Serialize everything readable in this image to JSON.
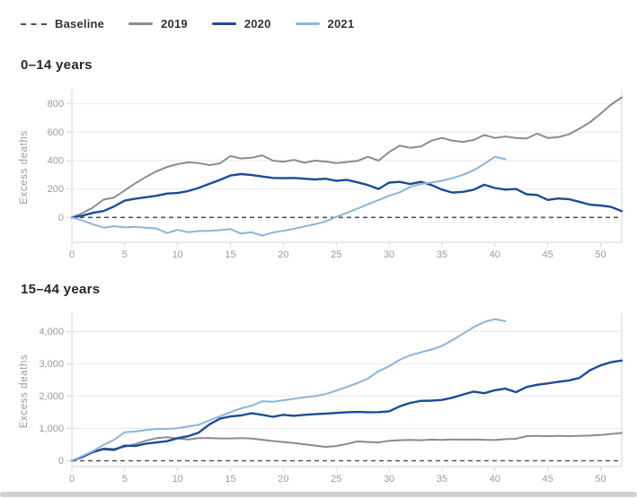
{
  "legend": {
    "items": [
      {
        "label": "Baseline",
        "style": "dashed",
        "color": "#4a4f57"
      },
      {
        "label": "2019",
        "style": "solid",
        "color": "#8c8c8c"
      },
      {
        "label": "2020",
        "style": "solid",
        "color": "#1c4c96"
      },
      {
        "label": "2021",
        "style": "solid",
        "color": "#8ab5dc"
      }
    ]
  },
  "colors": {
    "grid": "#e9e9e9",
    "axis": "#d6d6d6",
    "tick_text": "#9b9b9b",
    "baseline": "#53585f"
  },
  "chart_data": [
    {
      "type": "line",
      "title": "0–14 years",
      "xlabel": "",
      "ylabel": "Excess deaths",
      "xlim": [
        0,
        52
      ],
      "ylim": [
        -175,
        880
      ],
      "x_ticks": [
        0,
        5,
        10,
        15,
        20,
        25,
        30,
        35,
        40,
        45,
        50
      ],
      "y_ticks": [
        0,
        200,
        400,
        600,
        800
      ],
      "y_tick_labels": [
        "0",
        "200",
        "400",
        "600",
        "800"
      ],
      "grid": true,
      "legend_position": "top-shared",
      "baseline": {
        "label": "Baseline",
        "value": 0
      },
      "x_unit": "week",
      "series": [
        {
          "name": "2019",
          "color": "#8c8c8c",
          "start_x": 0,
          "values": [
            0,
            30,
            70,
            125,
            140,
            190,
            240,
            285,
            325,
            355,
            375,
            388,
            382,
            368,
            380,
            432,
            415,
            420,
            437,
            400,
            392,
            405,
            385,
            400,
            393,
            383,
            390,
            398,
            427,
            400,
            460,
            505,
            490,
            500,
            540,
            560,
            540,
            532,
            545,
            580,
            560,
            570,
            560,
            555,
            590,
            560,
            565,
            585,
            625,
            670,
            730,
            795,
            845
          ]
        },
        {
          "name": "2020",
          "color": "#1c4c96",
          "start_x": 0,
          "values": [
            0,
            12,
            32,
            45,
            78,
            118,
            132,
            142,
            152,
            168,
            172,
            186,
            208,
            236,
            264,
            295,
            305,
            298,
            288,
            278,
            276,
            278,
            272,
            267,
            272,
            258,
            265,
            247,
            228,
            200,
            245,
            250,
            235,
            250,
            228,
            196,
            175,
            180,
            195,
            230,
            207,
            196,
            200,
            163,
            158,
            123,
            133,
            128,
            110,
            90,
            84,
            74,
            45
          ]
        },
        {
          "name": "2021",
          "color": "#8ab5dc",
          "start_x": 0,
          "values": [
            0,
            -22,
            -48,
            -72,
            -62,
            -70,
            -66,
            -72,
            -78,
            -110,
            -88,
            -104,
            -96,
            -94,
            -90,
            -82,
            -114,
            -104,
            -128,
            -106,
            -94,
            -80,
            -64,
            -48,
            -28,
            4,
            32,
            62,
            92,
            122,
            152,
            176,
            215,
            235,
            245,
            258,
            277,
            300,
            332,
            376,
            427,
            410
          ]
        }
      ]
    },
    {
      "type": "line",
      "title": "15–44 years",
      "xlabel": "",
      "ylabel": "Excess deaths",
      "xlim": [
        0,
        52
      ],
      "ylim": [
        -180,
        4480
      ],
      "x_ticks": [
        0,
        5,
        10,
        15,
        20,
        25,
        30,
        35,
        40,
        45,
        50
      ],
      "y_ticks": [
        0,
        1000,
        2000,
        3000,
        4000
      ],
      "y_tick_labels": [
        "0",
        "1,000",
        "2,000",
        "3,000",
        "4,000"
      ],
      "grid": true,
      "legend_position": "top-shared",
      "baseline": {
        "label": "Baseline",
        "value": 0
      },
      "x_unit": "week",
      "series": [
        {
          "name": "2019",
          "color": "#8c8c8c",
          "start_x": 0,
          "values": [
            0,
            130,
            280,
            380,
            370,
            430,
            520,
            620,
            700,
            730,
            690,
            660,
            700,
            705,
            690,
            692,
            700,
            688,
            650,
            610,
            580,
            550,
            510,
            470,
            430,
            455,
            520,
            600,
            580,
            565,
            620,
            635,
            645,
            635,
            655,
            645,
            660,
            652,
            660,
            650,
            640,
            670,
            680,
            760,
            770,
            760,
            770,
            760,
            770,
            780,
            800,
            830,
            860
          ]
        },
        {
          "name": "2020",
          "color": "#1c4c96",
          "start_x": 0,
          "values": [
            0,
            120,
            270,
            360,
            335,
            470,
            455,
            530,
            565,
            605,
            700,
            760,
            870,
            1120,
            1300,
            1370,
            1400,
            1470,
            1420,
            1360,
            1420,
            1390,
            1420,
            1440,
            1460,
            1480,
            1500,
            1510,
            1500,
            1505,
            1530,
            1680,
            1790,
            1850,
            1860,
            1880,
            1950,
            2050,
            2140,
            2090,
            2180,
            2230,
            2120,
            2280,
            2350,
            2390,
            2440,
            2480,
            2560,
            2800,
            2950,
            3050,
            3100
          ]
        },
        {
          "name": "2021",
          "color": "#8ab5dc",
          "start_x": 0,
          "values": [
            0,
            150,
            300,
            490,
            650,
            880,
            905,
            950,
            985,
            985,
            1010,
            1060,
            1110,
            1250,
            1370,
            1500,
            1620,
            1700,
            1840,
            1825,
            1870,
            1915,
            1960,
            2000,
            2060,
            2170,
            2280,
            2400,
            2540,
            2770,
            2920,
            3120,
            3260,
            3350,
            3440,
            3550,
            3730,
            3930,
            4130,
            4290,
            4380,
            4310
          ]
        }
      ]
    }
  ]
}
